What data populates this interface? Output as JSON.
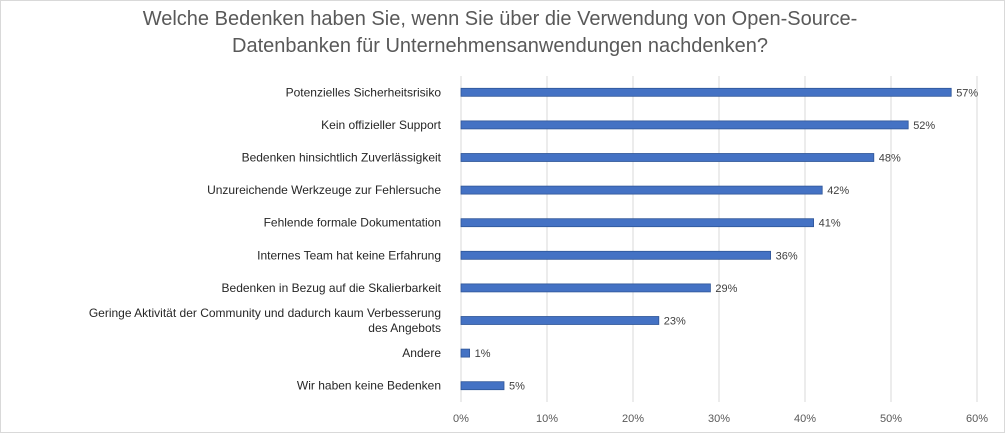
{
  "chart_data": {
    "type": "bar",
    "orientation": "horizontal",
    "title": "Welche Bedenken haben Sie, wenn Sie über die Verwendung von Open-Source-\nDatenbanken für Unternehmensanwendungen nachdenken?",
    "categories": [
      "Potenzielles Sicherheitsrisiko",
      "Kein offizieller Support",
      "Bedenken hinsichtlich Zuverlässigkeit",
      "Unzureichende Werkzeuge zur Fehlersuche",
      "Fehlende formale Dokumentation",
      "Internes Team hat keine Erfahrung",
      "Bedenken in Bezug auf die Skalierbarkeit",
      "Geringe Aktivität der Community und dadurch kaum Verbesserung\ndes Angebots",
      "Andere",
      "Wir haben keine Bedenken"
    ],
    "values": [
      57,
      52,
      48,
      42,
      41,
      36,
      29,
      23,
      1,
      5
    ],
    "data_labels": [
      "57%",
      "52%",
      "48%",
      "42%",
      "41%",
      "36%",
      "29%",
      "23%",
      "1%",
      "5%"
    ],
    "xlim": [
      0,
      60
    ],
    "xticks": [
      0,
      10,
      20,
      30,
      40,
      50,
      60
    ],
    "xtick_labels": [
      "0%",
      "10%",
      "20%",
      "30%",
      "40%",
      "50%",
      "60%"
    ],
    "grid": true,
    "legend": "none",
    "bar_color": "#4472c4",
    "bar_border_color": "#2f5597"
  }
}
